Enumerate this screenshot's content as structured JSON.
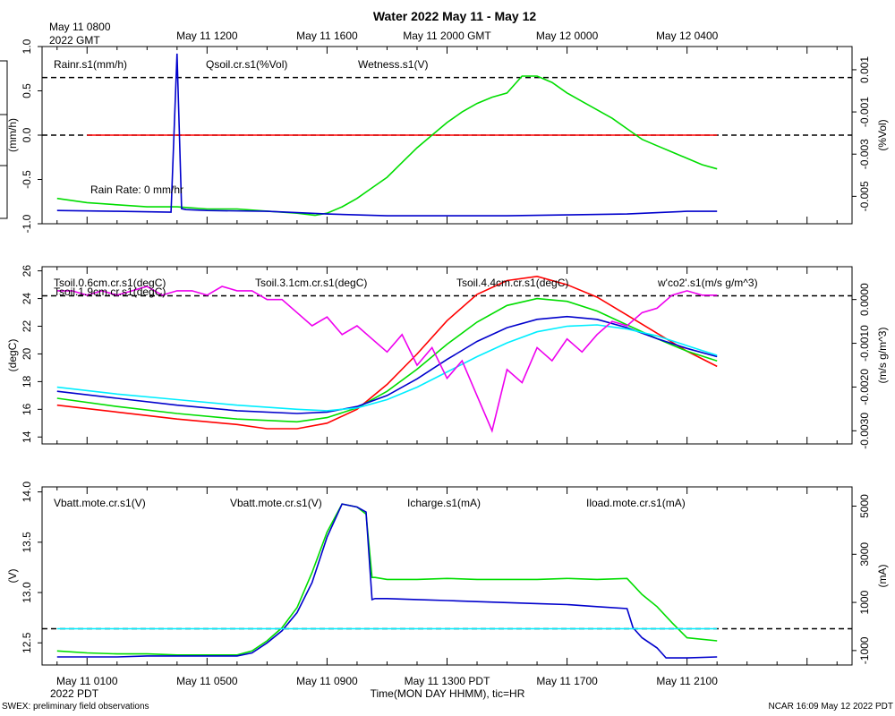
{
  "title": "Water 2022 May 11 - May 12",
  "top_axis": {
    "origin_label_line1": "May 11 0800",
    "origin_label_line2": "2022 GMT",
    "ticks": [
      "May 11 1200",
      "May 11 1600",
      "May 11 2000 GMT",
      "May 12 0000",
      "May 12 0400"
    ]
  },
  "bottom_axis": {
    "origin_label_line1": "May 11 0100",
    "origin_label_line2": "2022 PDT",
    "ticks": [
      "May 11 0500",
      "May 11 0900",
      "May 11 1300 PDT",
      "May 11 1700",
      "May 11 2100"
    ],
    "xlabel": "Time(MON DAY HHMM), tic=HR"
  },
  "footer": {
    "left": "SWEX: preliminary field observations",
    "right": "NCAR 16:09 May 12 2022 PDT"
  },
  "colors": {
    "red": "#ff0000",
    "green": "#00dd00",
    "blue": "#0000cc",
    "cyan": "#00eeff",
    "magenta": "#ee00ee",
    "black": "#000000"
  },
  "chart_data": [
    {
      "type": "line",
      "panel": "water",
      "x_unit": "hours since May 11 0100 PDT",
      "xlim": [
        -1.5,
        25.5
      ],
      "left_axis": {
        "label": "(mm/h)",
        "ylim": [
          -1.0,
          1.0
        ],
        "ticks": [
          "-1.0",
          "-0.5",
          "0.0",
          "0.5",
          "1.0"
        ]
      },
      "right_axis": {
        "label": "(%Vol)",
        "ylim": [
          -0.0063,
          0.0021
        ],
        "ticks": [
          "-0.005",
          "-0.003",
          "-0.001",
          "0.001"
        ]
      },
      "legend": [
        "Rainr.s1(mm/h)",
        "Qsoil.cr.s1(%Vol)",
        "Wetness.s1(V)"
      ],
      "annotation": "Rain Rate: 0 mm/hr",
      "reference_lines": [
        0.65,
        0.0
      ],
      "series": [
        {
          "name": "Rainr.s1(mm/h)",
          "color": "red",
          "axis": "left",
          "x": [
            0,
            21
          ],
          "y": [
            0.0,
            0.0
          ]
        },
        {
          "name": "Qsoil.cr.s1(%Vol)",
          "color": "green",
          "axis": "right",
          "x": [
            -1,
            0,
            1,
            2,
            3,
            4,
            5,
            6,
            7,
            7.6,
            8,
            8.5,
            9,
            9.5,
            10,
            10.5,
            11,
            11.5,
            12,
            12.5,
            13,
            13.5,
            14,
            14.5,
            15,
            15.5,
            16,
            16.5,
            17,
            17.5,
            18,
            18.5,
            19,
            19.5,
            20,
            20.5,
            21
          ],
          "y": [
            -0.0051,
            -0.0053,
            -0.0054,
            -0.0055,
            -0.0055,
            -0.0056,
            -0.0056,
            -0.0057,
            -0.0058,
            -0.0059,
            -0.0058,
            -0.0055,
            -0.0051,
            -0.0046,
            -0.0041,
            -0.0034,
            -0.0027,
            -0.0021,
            -0.0015,
            -0.001,
            -0.0006,
            -0.0003,
            -0.0001,
            0.0007,
            0.0007,
            0.0004,
            -0.0001,
            -0.0005,
            -0.0009,
            -0.0013,
            -0.0018,
            -0.0023,
            -0.0026,
            -0.0029,
            -0.0032,
            -0.0035,
            -0.0037
          ]
        },
        {
          "name": "Wetness.s1(V)",
          "color": "blue",
          "axis": "left",
          "x": [
            -1,
            1,
            2.8,
            3.0,
            3.15,
            3.3,
            4,
            6,
            8,
            10,
            12,
            14,
            16,
            18,
            20,
            21
          ],
          "y": [
            -0.85,
            -0.86,
            -0.87,
            0.92,
            -0.83,
            -0.84,
            -0.85,
            -0.86,
            -0.89,
            -0.91,
            -0.91,
            -0.91,
            -0.9,
            -0.89,
            -0.86,
            -0.86
          ]
        }
      ]
    },
    {
      "type": "line",
      "panel": "soil temperature",
      "x_unit": "hours since May 11 0100 PDT",
      "xlim": [
        -1.5,
        25.5
      ],
      "left_axis": {
        "label": "(degC)",
        "ylim": [
          13.5,
          26.3
        ],
        "ticks": [
          "14",
          "16",
          "18",
          "20",
          "22",
          "24",
          "26"
        ]
      },
      "right_axis": {
        "label": "(m/s g/m^3)",
        "ylim": [
          -0.0033,
          0.00075
        ],
        "ticks": [
          "-0.0030",
          "-0.0020",
          "-0.0010",
          "0.0000"
        ]
      },
      "legend": [
        "Tsoil.0.6cm.cr.s1(degC)",
        "Tsoil.1.9cm.cr.s1(degC)",
        "Tsoil.3.1cm.cr.s1(degC)",
        "Tsoil.4.4cm.cr.s1(degC)",
        "w'co2'.s1(m/s g/m^3)"
      ],
      "reference_lines": [
        24.2
      ],
      "series": [
        {
          "name": "Tsoil.0.6cm.cr.s1(degC)",
          "color": "red",
          "axis": "left",
          "x": [
            -1,
            1,
            3,
            5,
            6,
            7,
            8,
            9,
            10,
            11,
            12,
            13,
            14,
            15,
            16,
            17,
            18,
            19,
            20,
            21
          ],
          "y": [
            16.3,
            15.8,
            15.3,
            14.9,
            14.6,
            14.6,
            15.0,
            16.0,
            17.8,
            20.0,
            22.4,
            24.3,
            25.3,
            25.6,
            25.0,
            24.1,
            22.8,
            21.5,
            20.2,
            19.1
          ]
        },
        {
          "name": "Tsoil.1.9cm.cr.s1(degC)",
          "color": "green",
          "axis": "left",
          "x": [
            -1,
            1,
            3,
            5,
            7,
            8,
            9,
            10,
            11,
            12,
            13,
            14,
            15,
            16,
            17,
            18,
            19,
            20,
            21
          ],
          "y": [
            16.8,
            16.2,
            15.7,
            15.3,
            15.1,
            15.4,
            16.1,
            17.3,
            18.9,
            20.7,
            22.3,
            23.5,
            24.0,
            23.8,
            23.1,
            22.1,
            21.1,
            20.2,
            19.5
          ]
        },
        {
          "name": "Tsoil.3.1cm.cr.s1(degC)",
          "color": "blue",
          "axis": "left",
          "x": [
            -1,
            1,
            3,
            5,
            7,
            8,
            9,
            10,
            11,
            12,
            13,
            14,
            15,
            16,
            17,
            18,
            19,
            20,
            21
          ],
          "y": [
            17.3,
            16.8,
            16.3,
            15.9,
            15.7,
            15.8,
            16.2,
            17.0,
            18.2,
            19.6,
            20.9,
            21.9,
            22.5,
            22.7,
            22.5,
            21.9,
            21.1,
            20.4,
            19.8
          ]
        },
        {
          "name": "Tsoil.4.4cm.cr.s1(degC)",
          "color": "cyan",
          "axis": "left",
          "x": [
            -1,
            1,
            3,
            5,
            7,
            8,
            9,
            10,
            11,
            12,
            13,
            14,
            15,
            16,
            17,
            18,
            19,
            20,
            21
          ],
          "y": [
            17.6,
            17.1,
            16.7,
            16.3,
            16.0,
            15.9,
            16.1,
            16.7,
            17.6,
            18.7,
            19.8,
            20.8,
            21.6,
            22.0,
            22.1,
            21.8,
            21.3,
            20.6,
            19.9
          ]
        },
        {
          "name": "w'co2'.s1(m/s g/m^3)",
          "color": "magenta",
          "axis": "right",
          "x": [
            -1,
            -0.5,
            0,
            0.5,
            1,
            1.5,
            2,
            2.5,
            3,
            3.5,
            4,
            4.5,
            5,
            5.5,
            6,
            6.5,
            7,
            7.5,
            8,
            8.5,
            9,
            9.5,
            10,
            10.5,
            11,
            11.5,
            12,
            12.5,
            13,
            13.5,
            14,
            14.5,
            15,
            15.5,
            16,
            16.5,
            17,
            17.5,
            18,
            18.5,
            19,
            19.5,
            20,
            20.5,
            21
          ],
          "y": [
            0.0002,
            0.0002,
            0.0001,
            0.0002,
            0.0001,
            0.0002,
            0.0003,
            0.0001,
            0.0002,
            0.0002,
            0.0001,
            0.0003,
            0.0002,
            0.0002,
            0.0,
            0.0,
            -0.0003,
            -0.0006,
            -0.0004,
            -0.0008,
            -0.0006,
            -0.0009,
            -0.0012,
            -0.0008,
            -0.0015,
            -0.0011,
            -0.0018,
            -0.0014,
            -0.0022,
            -0.003,
            -0.0016,
            -0.0019,
            -0.0011,
            -0.0014,
            -0.0009,
            -0.0012,
            -0.0008,
            -0.0005,
            -0.0006,
            -0.0003,
            -0.0002,
            0.0001,
            0.0002,
            0.0001,
            0.0001
          ]
        }
      ]
    },
    {
      "type": "line",
      "panel": "power",
      "x_unit": "hours since May 11 0100 PDT",
      "xlim": [
        -1.5,
        25.5
      ],
      "left_axis": {
        "label": "(V)",
        "ylim": [
          12.28,
          14.05
        ],
        "ticks": [
          "12.5",
          "13.0",
          "13.5",
          "14.0"
        ]
      },
      "right_axis": {
        "label": "(mA)",
        "ylim": [
          -1600,
          5800
        ],
        "ticks": [
          "-1000",
          "1000",
          "3000",
          "5000"
        ]
      },
      "legend": [
        "Vbatt.mote.cr.s1(V)",
        "Vbatt.mote.cr.s1(V)",
        "Icharge.s1(mA)",
        "Iload.mote.cr.s1(mA)"
      ],
      "reference_lines": [
        12.64
      ],
      "series": [
        {
          "name": "Vbatt.mote.cr.s1(V)",
          "color": "red",
          "axis": "left",
          "x": [],
          "y": []
        },
        {
          "name": "Vbatt.mote.cr.s1(V)",
          "color": "green",
          "axis": "left",
          "x": [
            -1,
            0,
            1,
            2,
            3,
            4,
            5,
            5.5,
            6,
            6.5,
            7,
            7.5,
            8,
            8.5,
            9,
            9.3,
            9.5,
            9.6,
            10,
            11,
            12,
            13,
            14,
            15,
            16,
            17,
            18,
            18.5,
            19,
            19.5,
            20,
            21
          ],
          "y": [
            12.42,
            12.4,
            12.39,
            12.39,
            12.38,
            12.38,
            12.38,
            12.42,
            12.52,
            12.65,
            12.85,
            13.2,
            13.6,
            13.88,
            13.85,
            13.78,
            13.15,
            13.15,
            13.13,
            13.13,
            13.14,
            13.13,
            13.13,
            13.13,
            13.14,
            13.13,
            13.14,
            12.98,
            12.86,
            12.7,
            12.55,
            12.52
          ]
        },
        {
          "name": "Icharge.s1(mA)",
          "color": "blue",
          "axis": "left",
          "x": [
            -1,
            0,
            1,
            2,
            3,
            4,
            5,
            5.5,
            6,
            6.5,
            7,
            7.5,
            8,
            8.5,
            9,
            9.3,
            9.5,
            9.6,
            10,
            11,
            12,
            13,
            14,
            15,
            16,
            17,
            18,
            18.2,
            18.5,
            19,
            19.3,
            20,
            21
          ],
          "y": [
            12.36,
            12.36,
            12.36,
            12.37,
            12.37,
            12.37,
            12.37,
            12.4,
            12.5,
            12.62,
            12.8,
            13.1,
            13.55,
            13.88,
            13.85,
            13.8,
            12.93,
            12.94,
            12.94,
            12.93,
            12.92,
            12.91,
            12.9,
            12.89,
            12.88,
            12.86,
            12.84,
            12.65,
            12.55,
            12.45,
            12.35,
            12.35,
            12.36
          ]
        },
        {
          "name": "Iload.mote.cr.s1(mA)",
          "color": "cyan",
          "axis": "left",
          "x": [
            -1,
            21
          ],
          "y": [
            12.64,
            12.64
          ]
        }
      ]
    }
  ]
}
